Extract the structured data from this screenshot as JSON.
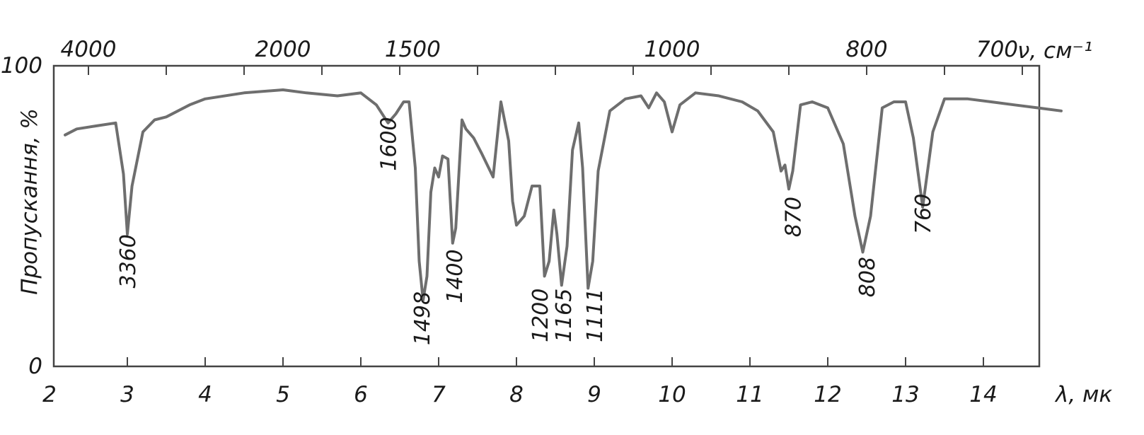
{
  "chart_data": {
    "type": "line",
    "title": "",
    "xlabel": "λ, мк",
    "x2label": "ν, см⁻¹",
    "ylabel": "Пропускання, %",
    "xlim": [
      2,
      15
    ],
    "ylim": [
      0,
      100
    ],
    "x_ticks": [
      "2",
      "3",
      "4",
      "5",
      "6",
      "7",
      "8",
      "9",
      "10",
      "11",
      "12",
      "13",
      "14"
    ],
    "x_tick_values": [
      2,
      3,
      4,
      5,
      6,
      7,
      8,
      9,
      10,
      11,
      12,
      13,
      14
    ],
    "y_ticks": [
      "0",
      "100"
    ],
    "y_tick_values": [
      0,
      100
    ],
    "top_ticks": [
      "4000",
      "2000",
      "1500",
      "1000",
      "800",
      "700"
    ],
    "top_tick_values": [
      2.5,
      5,
      6.667,
      10,
      12.5,
      14.286
    ],
    "grid": false,
    "series": [
      {
        "color": "#6e6e6e",
        "x": [
          2.2,
          2.35,
          2.6,
          2.85,
          2.95,
          3.0,
          3.06,
          3.2,
          3.35,
          3.5,
          3.65,
          3.8,
          4.0,
          4.5,
          5.0,
          5.3,
          5.7,
          6.0,
          6.2,
          6.35,
          6.45,
          6.55,
          6.62,
          6.7,
          6.75,
          6.8,
          6.85,
          6.9,
          6.95,
          7.0,
          7.05,
          7.12,
          7.18,
          7.22,
          7.3,
          7.35,
          7.45,
          7.55,
          7.7,
          7.8,
          7.9,
          7.95,
          8.0,
          8.1,
          8.2,
          8.3,
          8.36,
          8.42,
          8.48,
          8.52,
          8.58,
          8.65,
          8.72,
          8.8,
          8.85,
          8.92,
          8.98,
          9.05,
          9.2,
          9.4,
          9.6,
          9.7,
          9.8,
          9.9,
          10.0,
          10.1,
          10.3,
          10.6,
          10.9,
          11.1,
          11.3,
          11.4,
          11.45,
          11.5,
          11.55,
          11.65,
          11.8,
          12.0,
          12.2,
          12.35,
          12.45,
          12.55,
          12.7,
          12.85,
          13.0,
          13.1,
          13.22,
          13.35,
          13.5,
          13.8,
          14.1,
          14.4,
          14.7,
          15.0
        ],
        "y": [
          77,
          79,
          80,
          81,
          64,
          44,
          60,
          78,
          82,
          83,
          85,
          87,
          89,
          91,
          92,
          91,
          90,
          91,
          87,
          81,
          84,
          88,
          88,
          66,
          35,
          22,
          30,
          58,
          66,
          63,
          70,
          69,
          41,
          46,
          82,
          79,
          76,
          71,
          63,
          88,
          75,
          55,
          47,
          50,
          60,
          60,
          30,
          35,
          52,
          44,
          27,
          40,
          72,
          81,
          66,
          26,
          35,
          65,
          85,
          89,
          90,
          86,
          91,
          88,
          78,
          87,
          91,
          90,
          88,
          85,
          78,
          65,
          67,
          59,
          65,
          87,
          88,
          86,
          74,
          50,
          38,
          50,
          86,
          88,
          88,
          76,
          53,
          78,
          89,
          89,
          88,
          87,
          86,
          85
        ]
      }
    ],
    "annotations": [
      {
        "text": "3360",
        "x": 3.0,
        "y": 26
      },
      {
        "text": "1600",
        "x": 6.35,
        "y": 65
      },
      {
        "text": "1498",
        "x": 6.78,
        "y": 7
      },
      {
        "text": "1400",
        "x": 7.2,
        "y": 21
      },
      {
        "text": "1200",
        "x": 8.3,
        "y": 8
      },
      {
        "text": "1165",
        "x": 8.6,
        "y": 8
      },
      {
        "text": "1111",
        "x": 9.0,
        "y": 8
      },
      {
        "text": "870",
        "x": 11.55,
        "y": 43
      },
      {
        "text": "808",
        "x": 12.5,
        "y": 23
      },
      {
        "text": "760",
        "x": 13.22,
        "y": 44
      }
    ]
  }
}
